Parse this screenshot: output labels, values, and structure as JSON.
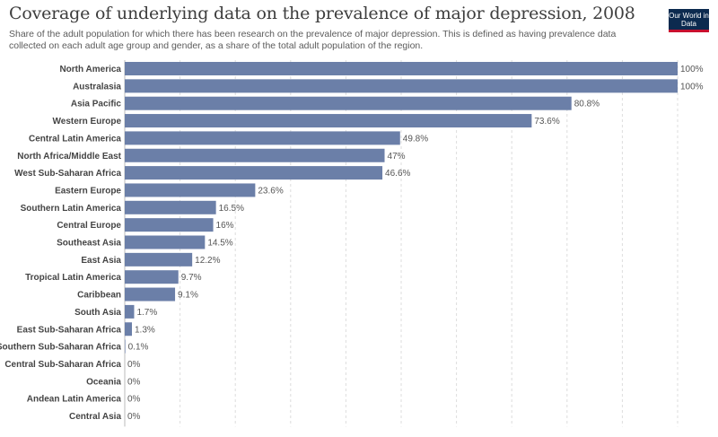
{
  "header": {
    "title": "Coverage of underlying data on the prevalence of major depression, 2008",
    "subtitle": "Share of the adult population for which there has been research on the prevalence of major depression. This is defined as having prevalence data collected on each adult age group and gender, as a share of the total adult population of the region.",
    "logo_text": "Our World in Data"
  },
  "colors": {
    "bar": "#6b7fa8",
    "label": "#555555",
    "grid": "#dddddd",
    "logo_bg": "#0c2a4f",
    "logo_accent": "#c8102e"
  },
  "chart_data": {
    "type": "bar",
    "orientation": "horizontal",
    "categories": [
      "North America",
      "Australasia",
      "Asia Pacific",
      "Western Europe",
      "Central Latin America",
      "North Africa/Middle East",
      "West Sub-Saharan Africa",
      "Eastern Europe",
      "Southern Latin America",
      "Central Europe",
      "Southeast Asia",
      "East Asia",
      "Tropical Latin America",
      "Caribbean",
      "South Asia",
      "East Sub-Saharan Africa",
      "Southern Sub-Saharan Africa",
      "Central Sub-Saharan Africa",
      "Oceania",
      "Andean Latin America",
      "Central Asia"
    ],
    "values": [
      100,
      100,
      80.8,
      73.6,
      49.8,
      47,
      46.6,
      23.6,
      16.5,
      16,
      14.5,
      12.2,
      9.7,
      9.1,
      1.7,
      1.3,
      0.1,
      0,
      0,
      0,
      0
    ],
    "value_labels": [
      "100%",
      "100%",
      "80.8%",
      "73.6%",
      "49.8%",
      "47%",
      "46.6%",
      "23.6%",
      "16.5%",
      "16%",
      "14.5%",
      "12.2%",
      "9.7%",
      "9.1%",
      "1.7%",
      "1.3%",
      "0.1%",
      "0%",
      "0%",
      "0%",
      "0%"
    ],
    "xlim": [
      0,
      100
    ],
    "grid": true
  }
}
